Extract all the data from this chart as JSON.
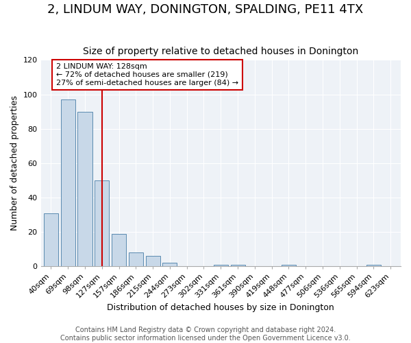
{
  "title": "2, LINDUM WAY, DONINGTON, SPALDING, PE11 4TX",
  "subtitle": "Size of property relative to detached houses in Donington",
  "xlabel": "Distribution of detached houses by size in Donington",
  "ylabel": "Number of detached properties",
  "bar_labels": [
    "40sqm",
    "69sqm",
    "98sqm",
    "127sqm",
    "157sqm",
    "186sqm",
    "215sqm",
    "244sqm",
    "273sqm",
    "302sqm",
    "331sqm",
    "361sqm",
    "390sqm",
    "419sqm",
    "448sqm",
    "477sqm",
    "506sqm",
    "536sqm",
    "565sqm",
    "594sqm",
    "623sqm"
  ],
  "bar_values": [
    31,
    97,
    90,
    50,
    19,
    8,
    6,
    2,
    0,
    0,
    1,
    1,
    0,
    0,
    1,
    0,
    0,
    0,
    0,
    1,
    0
  ],
  "bar_color": "#c8d8e8",
  "bar_edge_color": "#5a8ab0",
  "vline_color": "#cc0000",
  "vline_index": 3,
  "annotation_title": "2 LINDUM WAY: 128sqm",
  "annotation_line1": "← 72% of detached houses are smaller (219)",
  "annotation_line2": "27% of semi-detached houses are larger (84) →",
  "annotation_box_color": "#ffffff",
  "annotation_box_edge": "#cc0000",
  "ylim": [
    0,
    120
  ],
  "yticks": [
    0,
    20,
    40,
    60,
    80,
    100,
    120
  ],
  "bg_color": "#eef2f7",
  "grid_color": "#ffffff",
  "footer_line1": "Contains HM Land Registry data © Crown copyright and database right 2024.",
  "footer_line2": "Contains public sector information licensed under the Open Government Licence v3.0.",
  "title_fontsize": 13,
  "subtitle_fontsize": 10,
  "axis_label_fontsize": 9,
  "tick_fontsize": 8,
  "annotation_fontsize": 8,
  "footer_fontsize": 7
}
